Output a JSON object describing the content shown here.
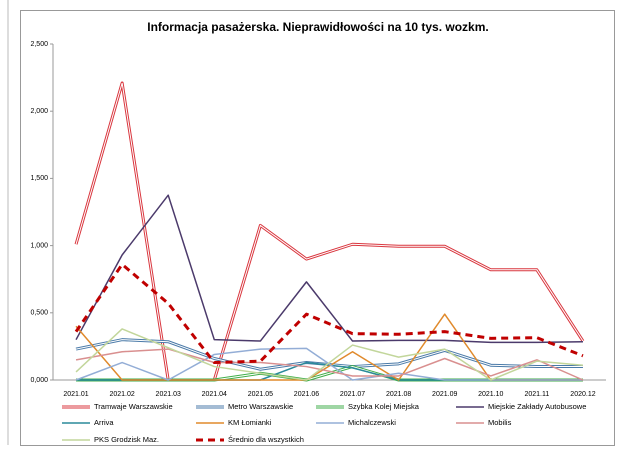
{
  "chart_data": {
    "type": "line",
    "title": "Informacja pasażerska. Nieprawidłowości na 10 tys. wozkm.",
    "categories": [
      "2021.01",
      "2021.02",
      "2021.03",
      "2021.04",
      "2021.05",
      "2021.06",
      "2021.07",
      "2021.08",
      "2021.09",
      "2021.10",
      "2021.11",
      "2020.12"
    ],
    "ylim": [
      0,
      2500
    ],
    "yticks": [
      {
        "value": 0,
        "label": "0,000"
      },
      {
        "value": 500,
        "label": "0,500"
      },
      {
        "value": 1000,
        "label": "1,000"
      },
      {
        "value": 1500,
        "label": "1,500"
      },
      {
        "value": 2000,
        "label": "2,000"
      },
      {
        "value": 2500,
        "label": "2,500"
      }
    ],
    "grid": false,
    "legend": "bottom",
    "series": [
      {
        "name": "Tramwaje Warszawskie",
        "color": "#d9363e",
        "style": "double",
        "values": [
          1010,
          2210,
          0,
          0,
          1150,
          900,
          1010,
          995,
          995,
          820,
          820,
          290
        ]
      },
      {
        "name": "Metro Warszawskie",
        "color": "#4a7aa8",
        "style": "double",
        "values": [
          230,
          300,
          285,
          160,
          80,
          130,
          100,
          120,
          220,
          110,
          100,
          100
        ]
      },
      {
        "name": "Szybka Kolej Miejska",
        "color": "#3fae49",
        "style": "double",
        "values": [
          0,
          0,
          0,
          0,
          50,
          0,
          100,
          0,
          0,
          0,
          0,
          0
        ]
      },
      {
        "name": "Miejskie Zakłady Autobusowe",
        "color": "#4b3a6b",
        "style": "solid",
        "values": [
          300,
          930,
          1375,
          300,
          290,
          730,
          290,
          295,
          295,
          280,
          280,
          285
        ]
      },
      {
        "name": "Arriva",
        "color": "#2a8a9a",
        "style": "solid",
        "values": [
          0,
          0,
          0,
          0,
          0,
          130,
          90,
          0,
          0,
          0,
          0,
          0
        ]
      },
      {
        "name": "KM Łomianki",
        "color": "#e08a2c",
        "style": "solid",
        "values": [
          400,
          0,
          0,
          0,
          0,
          0,
          210,
          0,
          490,
          0,
          0,
          0
        ]
      },
      {
        "name": "Michalczewski",
        "color": "#93add6",
        "style": "solid",
        "values": [
          0,
          130,
          0,
          190,
          230,
          235,
          0,
          50,
          0,
          0,
          0,
          0
        ]
      },
      {
        "name": "Mobilis",
        "color": "#d98f8f",
        "style": "solid",
        "values": [
          150,
          210,
          230,
          130,
          130,
          100,
          30,
          30,
          160,
          30,
          150,
          0
        ]
      },
      {
        "name": "PKS Grodzisk Maz.",
        "color": "#c2d69b",
        "style": "solid",
        "values": [
          60,
          380,
          240,
          100,
          50,
          0,
          260,
          170,
          230,
          0,
          140,
          110
        ]
      },
      {
        "name": "Średnio dla wszystkich",
        "color": "#c00000",
        "style": "dashed",
        "values": [
          360,
          860,
          570,
          130,
          140,
          490,
          345,
          340,
          360,
          310,
          315,
          180
        ]
      }
    ]
  }
}
